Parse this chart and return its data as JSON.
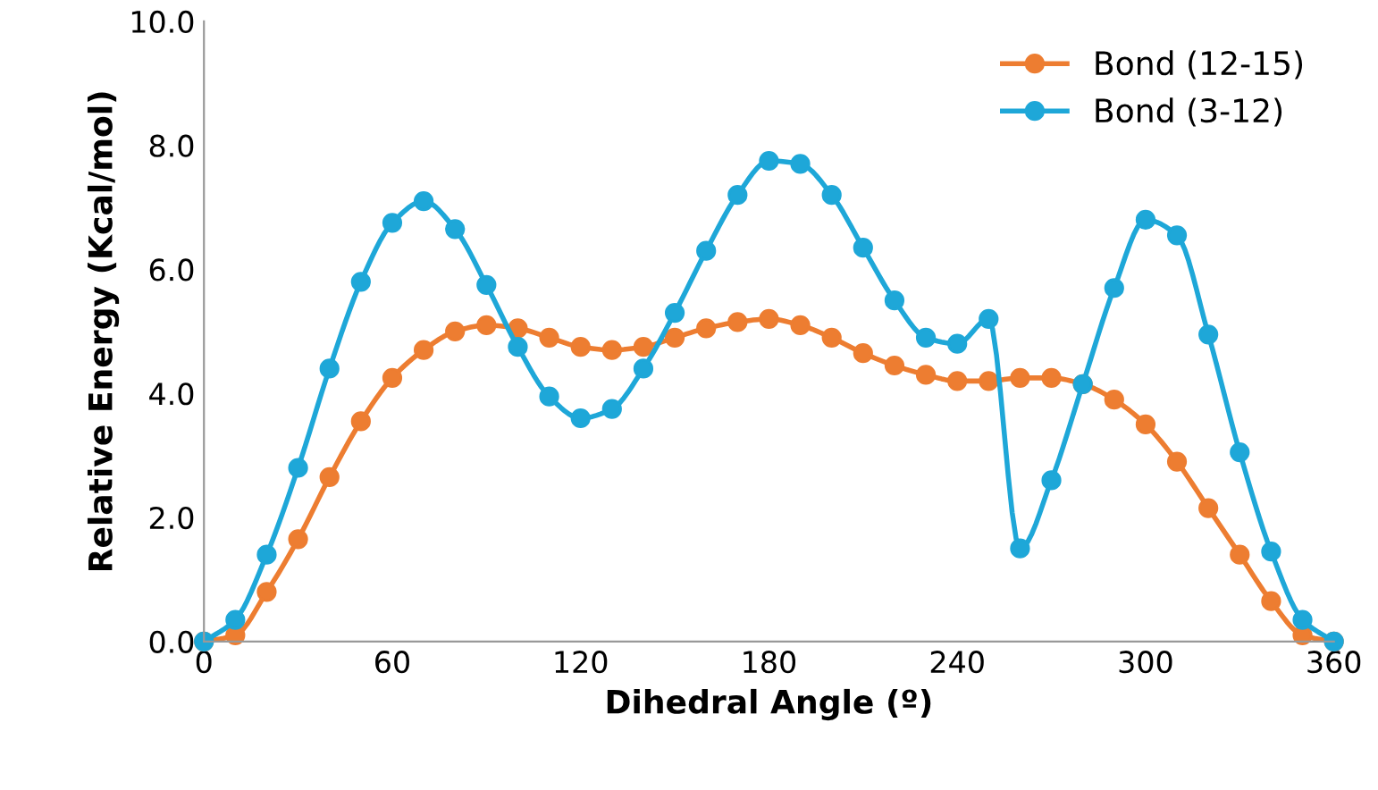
{
  "chart_data": {
    "type": "line",
    "xlabel": "Dihedral Angle (º)",
    "ylabel": "Relative Energy (Kcal/mol)",
    "x": [
      0,
      10,
      20,
      30,
      40,
      50,
      60,
      70,
      80,
      90,
      100,
      110,
      120,
      130,
      140,
      150,
      160,
      170,
      180,
      190,
      200,
      210,
      220,
      230,
      240,
      250,
      260,
      270,
      280,
      290,
      300,
      310,
      320,
      330,
      340,
      350,
      360
    ],
    "series": [
      {
        "name": "Bond (12-15)",
        "color": "#ed7d31",
        "values": [
          0,
          0.1,
          0.8,
          1.65,
          2.65,
          3.55,
          4.25,
          4.7,
          5.0,
          5.1,
          5.05,
          4.9,
          4.75,
          4.7,
          4.75,
          4.9,
          5.05,
          5.15,
          5.2,
          5.1,
          4.9,
          4.65,
          4.45,
          4.3,
          4.2,
          4.2,
          4.25,
          4.25,
          4.15,
          3.9,
          3.5,
          2.9,
          2.15,
          1.4,
          0.65,
          0.1,
          0
        ]
      },
      {
        "name": "Bond (3-12)",
        "color": "#1ea7d8",
        "values": [
          0,
          0.35,
          1.4,
          2.8,
          4.4,
          5.8,
          6.75,
          7.1,
          6.65,
          5.75,
          4.75,
          3.95,
          3.6,
          3.75,
          4.4,
          5.3,
          6.3,
          7.2,
          7.75,
          7.7,
          7.2,
          6.35,
          5.5,
          4.9,
          4.8,
          5.2,
          1.5,
          2.6,
          4.15,
          5.7,
          6.8,
          6.55,
          4.95,
          3.05,
          1.45,
          0.35,
          0
        ]
      }
    ],
    "xlim": [
      0,
      360
    ],
    "xticks": [
      0,
      60,
      120,
      180,
      240,
      300,
      360
    ],
    "ylim": [
      0,
      10
    ],
    "yticks": [
      {
        "value": 0,
        "label": "0.0"
      },
      {
        "value": 2,
        "label": "2.0"
      },
      {
        "value": 4,
        "label": "4.0"
      },
      {
        "value": 6,
        "label": "6.0"
      },
      {
        "value": 8,
        "label": "8.0"
      },
      {
        "value": 10,
        "label": "10.0"
      }
    ],
    "marker": "circle",
    "legend": "top right",
    "grid": false
  }
}
